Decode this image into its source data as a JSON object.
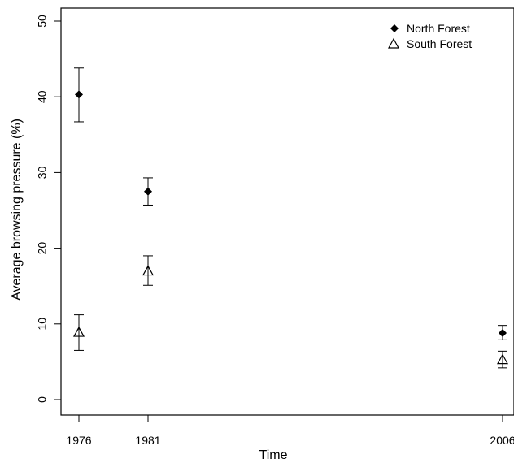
{
  "chart_data": {
    "type": "scatter",
    "title": "",
    "xlabel": "Time",
    "ylabel": "Average browsing pressure (%)",
    "xlim": [
      1975,
      2006
    ],
    "ylim": [
      0,
      52
    ],
    "x_ticks": [
      1976,
      1981,
      2006
    ],
    "y_ticks": [
      0,
      10,
      20,
      30,
      40,
      50
    ],
    "grid": false,
    "legend_position": "top-right",
    "series": [
      {
        "name": "North Forest",
        "marker": "filled-diamond",
        "color": "#000000",
        "points": [
          {
            "x": 1976,
            "y": 40.3,
            "ymin": 36.7,
            "ymax": 43.8
          },
          {
            "x": 1981,
            "y": 27.5,
            "ymin": 25.7,
            "ymax": 29.3
          },
          {
            "x": 2006,
            "y": 8.8,
            "ymin": 7.9,
            "ymax": 9.8
          }
        ]
      },
      {
        "name": "South Forest",
        "marker": "open-triangle",
        "color": "#000000",
        "points": [
          {
            "x": 1976,
            "y": 8.9,
            "ymin": 6.5,
            "ymax": 11.2
          },
          {
            "x": 1981,
            "y": 17.0,
            "ymin": 15.1,
            "ymax": 19.0
          },
          {
            "x": 2006,
            "y": 5.3,
            "ymin": 4.2,
            "ymax": 6.4
          }
        ]
      }
    ]
  }
}
